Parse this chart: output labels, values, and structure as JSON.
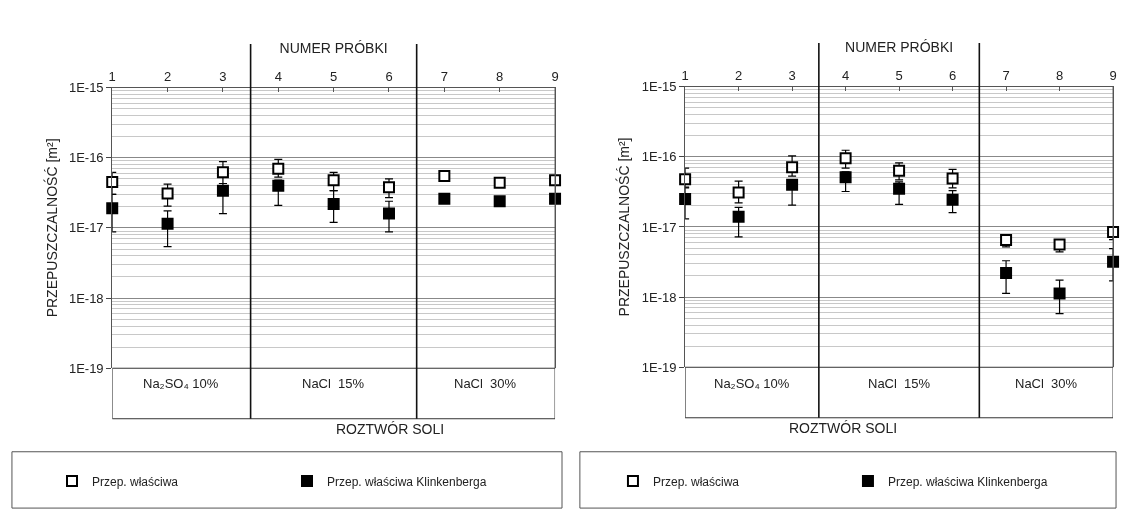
{
  "chart_data": [
    {
      "type": "scatter",
      "xlabel": "NUMER PRÓBKI",
      "ylabel": "PRZEPUSZCZALNOŚĆ [m²]",
      "categories": [
        "1",
        "2",
        "3",
        "4",
        "5",
        "6",
        "7",
        "8",
        "9"
      ],
      "log": "y",
      "ylim": [
        1e-19,
        1e-15
      ],
      "yticks": [
        {
          "value": 1e-19,
          "label": "1E-19"
        },
        {
          "value": 1e-18,
          "label": "1E-18"
        },
        {
          "value": 1e-17,
          "label": "1E-17"
        },
        {
          "value": 1e-16,
          "label": "1E-16"
        },
        {
          "value": 1e-15,
          "label": "1E-15"
        }
      ],
      "grid": "y",
      "legend": "bottom",
      "marker": "square",
      "annotations": [
        "Na₂SO₄ 10%",
        "NaCl  15%",
        "NaCl  30%",
        "ROZTWÓR SOLI"
      ],
      "series": [
        {
          "name": "Przep. właściwa",
          "color": "#ffffff",
          "values": [
            4.5e-17,
            3.1e-17,
            6.2e-17,
            7e-17,
            4.8e-17,
            3.8e-17,
            5.5e-17,
            4.4e-17,
            4.8e-17
          ],
          "errors": [
            [
              3e-17,
              6.2e-17
            ],
            [
              2.05e-17,
              4.2e-17
            ],
            [
              4.3e-17,
              8.8e-17
            ],
            [
              5.3e-17,
              9.5e-17
            ],
            [
              3.4e-17,
              6.2e-17
            ],
            [
              2.7e-17,
              5e-17
            ],
            null,
            null,
            null
          ]
        },
        {
          "name": "Przep. właściwa Klinkenberga",
          "color": "#000000",
          "values": [
            1.9e-17,
            1.15e-17,
            3.4e-17,
            4e-17,
            2.2e-17,
            1.6e-17,
            2.6e-17,
            2.4e-17,
            2.6e-17
          ],
          "errors": [
            [
              8.8e-18,
              3e-17
            ],
            [
              5.4e-18,
              1.75e-17
            ],
            [
              1.6e-17,
              4.3e-17
            ],
            [
              2.1e-17,
              4.8e-17
            ],
            [
              1.2e-17,
              3.4e-17
            ],
            [
              8.8e-18,
              2.4e-17
            ],
            null,
            null,
            null
          ]
        }
      ]
    },
    {
      "type": "scatter",
      "xlabel": "NUMER PRÓBKI",
      "ylabel": "PRZEPUSZCZALNOŚĆ [m²]",
      "categories": [
        "1",
        "2",
        "3",
        "4",
        "5",
        "6",
        "7",
        "8",
        "9"
      ],
      "log": "y",
      "ylim": [
        1e-19,
        1e-15
      ],
      "yticks": [
        {
          "value": 1e-19,
          "label": "1E-19"
        },
        {
          "value": 1e-18,
          "label": "1E-18"
        },
        {
          "value": 1e-17,
          "label": "1E-17"
        },
        {
          "value": 1e-16,
          "label": "1E-16"
        },
        {
          "value": 1e-15,
          "label": "1E-15"
        }
      ],
      "grid": "y",
      "legend": "bottom",
      "marker": "square",
      "annotations": [
        "Na₂SO₄ 10%",
        "NaCl  15%",
        "NaCl  30%",
        "ROZTWÓR SOLI"
      ],
      "series": [
        {
          "name": "Przep. właściwa",
          "color": "#ffffff",
          "values": [
            4.8e-17,
            3.1e-17,
            7.1e-17,
            9.5e-17,
            6.3e-17,
            4.9e-17,
            6.5e-18,
            5.6e-18,
            8.5e-18
          ],
          "errors": [
            [
              3.7e-17,
              6.9e-17
            ],
            [
              2.2e-17,
              4.5e-17
            ],
            [
              5.3e-17,
              1.03e-16
            ],
            [
              6.9e-17,
              1.24e-16
            ],
            [
              4.7e-17,
              8.2e-17
            ],
            [
              3.6e-17,
              6.6e-17
            ],
            [
              5.2e-18,
              7.6e-18
            ],
            [
              4.4e-18,
              6.4e-18
            ],
            [
              6.6e-18,
              9.6e-18
            ]
          ]
        },
        {
          "name": "Przep. właściwa Klinkenberga",
          "color": "#000000",
          "values": [
            2.5e-17,
            1.4e-17,
            4e-17,
            5.1e-17,
            3.5e-17,
            2.45e-17,
            2.2e-18,
            1.13e-18,
            3.2e-18
          ],
          "errors": [
            [
              1.3e-17,
              3.6e-17
            ],
            [
              7.2e-18,
              1.9e-17
            ],
            [
              2.05e-17,
              4.7e-17
            ],
            [
              3.2e-17,
              6.1e-17
            ],
            [
              2.1e-17,
              4.4e-17
            ],
            [
              1.6e-17,
              3.3e-17
            ],
            [
              1.13e-18,
              3.3e-18
            ],
            [
              5.8e-19,
              1.75e-18
            ],
            [
              1.7e-18,
              4.9e-18
            ]
          ]
        }
      ]
    }
  ]
}
